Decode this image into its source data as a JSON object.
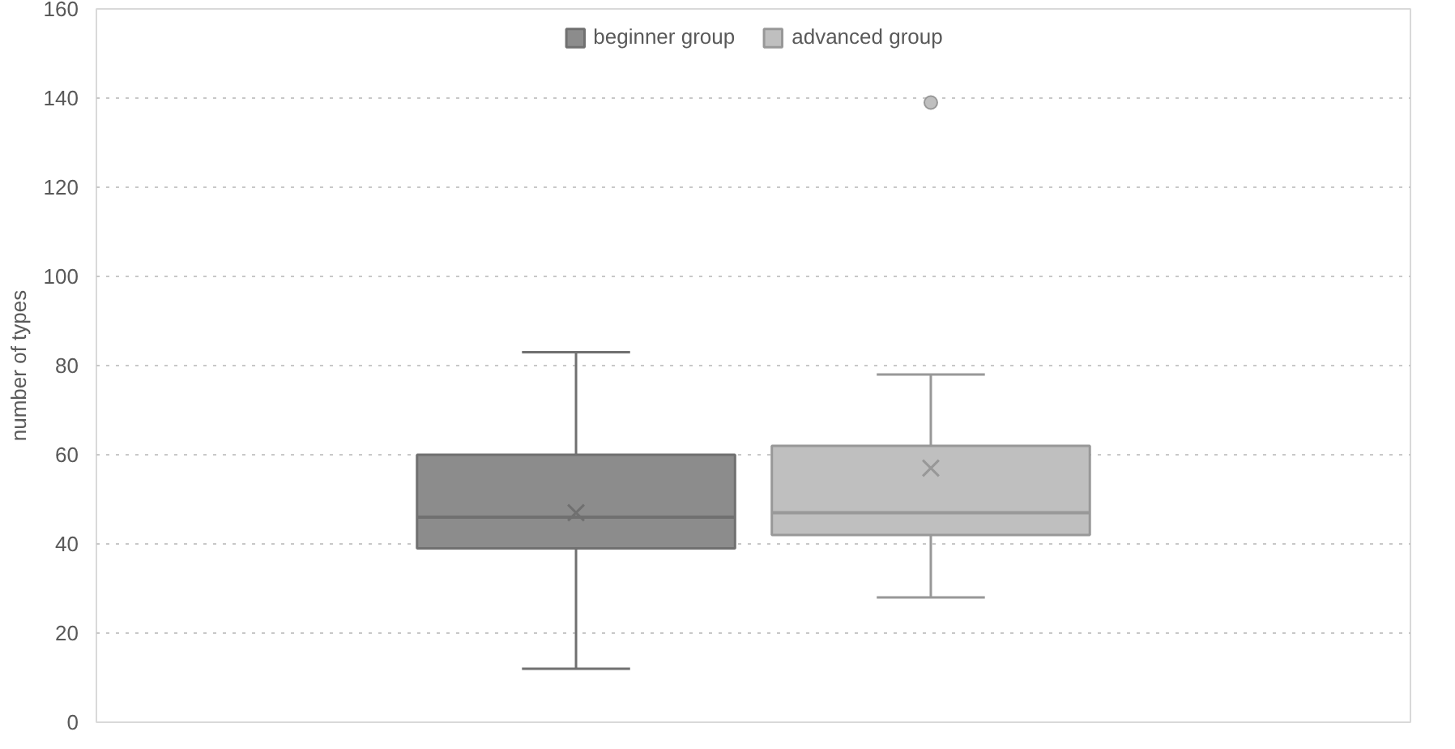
{
  "chart_data": {
    "type": "box",
    "ylabel": "number of types",
    "categories": [
      null
    ],
    "series": [
      {
        "name": "beginner group",
        "color": "#8c8c8c",
        "boxes": [
          {
            "low": 12,
            "q1": 39,
            "median": 46,
            "q3": 60,
            "high": 83,
            "mean": 47
          }
        ]
      },
      {
        "name": "advanced group",
        "color": "#bfbfbf",
        "boxes": [
          {
            "low": 28,
            "q1": 42,
            "median": 47,
            "q3": 62,
            "high": 78,
            "mean": 57,
            "outliers": [
              139
            ]
          }
        ]
      }
    ],
    "ylim": [
      0,
      160
    ],
    "yticks": [
      0,
      20,
      40,
      60,
      80,
      100,
      120,
      140,
      160
    ],
    "grid": "y",
    "legend": "top",
    "tick_labels": "y"
  }
}
